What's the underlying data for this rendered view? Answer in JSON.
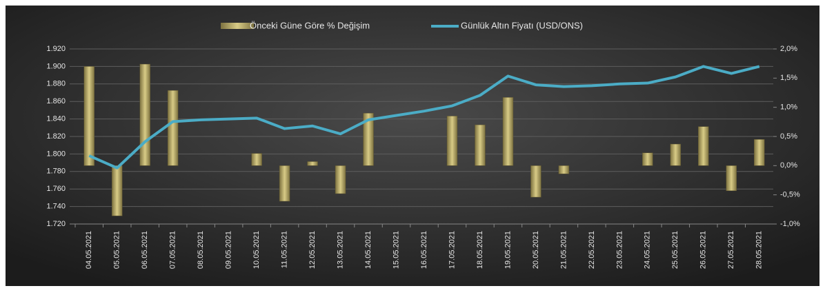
{
  "chart_data": {
    "type": "bar_line",
    "categories": [
      "04.05.2021",
      "05.05.2021",
      "06.05.2021",
      "07.05.2021",
      "08.05.2021",
      "09.05.2021",
      "10.05.2021",
      "11.05.2021",
      "12.05.2021",
      "13.05.2021",
      "14.05.2021",
      "15.05.2021",
      "16.05.2021",
      "17.05.2021",
      "18.05.2021",
      "19.05.2021",
      "20.05.2021",
      "21.05.2021",
      "22.05.2021",
      "23.05.2021",
      "24.05.2021",
      "25.05.2021",
      "26.05.2021",
      "27.05.2021",
      "28.05.2021"
    ],
    "series": [
      {
        "name": "Önceki Güne Göre % Değişim",
        "type": "bar",
        "axis": "y2",
        "color": "#b8a95a",
        "values": [
          1.7,
          -0.86,
          1.74,
          1.29,
          null,
          null,
          0.21,
          -0.61,
          0.07,
          -0.48,
          0.9,
          null,
          null,
          0.85,
          0.7,
          1.17,
          -0.54,
          -0.14,
          null,
          null,
          0.22,
          0.37,
          0.67,
          -0.43,
          0.45
        ]
      },
      {
        "name": "Günlük Altın Fiyatı (USD/ONS)",
        "type": "line",
        "color": "#4bacc6",
        "values": [
          1798,
          1784,
          1814,
          1837,
          1839,
          1840,
          1841,
          1829,
          1832,
          1823,
          1839,
          1844,
          1849,
          1855,
          1867,
          1889,
          1879,
          1877,
          1878,
          1880,
          1881,
          1888,
          1900,
          1892,
          1900
        ]
      }
    ],
    "ylim": [
      1720,
      1920
    ],
    "yticks": [
      {
        "value": 1720,
        "label": "1.720"
      },
      {
        "value": 1740,
        "label": "1.740"
      },
      {
        "value": 1760,
        "label": "1.760"
      },
      {
        "value": 1780,
        "label": "1.780"
      },
      {
        "value": 1800,
        "label": "1.800"
      },
      {
        "value": 1820,
        "label": "1.820"
      },
      {
        "value": 1840,
        "label": "1.840"
      },
      {
        "value": 1860,
        "label": "1.860"
      },
      {
        "value": 1880,
        "label": "1.880"
      },
      {
        "value": 1900,
        "label": "1.900"
      },
      {
        "value": 1920,
        "label": "1.920"
      }
    ],
    "y2lim": [
      -1.0,
      2.0
    ],
    "y2ticks": [
      {
        "value": -1.0,
        "label": "-1,0%"
      },
      {
        "value": -0.5,
        "label": "-0,5%"
      },
      {
        "value": 0.0,
        "label": "0,0%"
      },
      {
        "value": 0.5,
        "label": "0,5%"
      },
      {
        "value": 1.0,
        "label": "1,0%"
      },
      {
        "value": 1.5,
        "label": "1,5%"
      },
      {
        "value": 2.0,
        "label": "2,0%"
      }
    ],
    "grid": true,
    "legend": "top"
  }
}
